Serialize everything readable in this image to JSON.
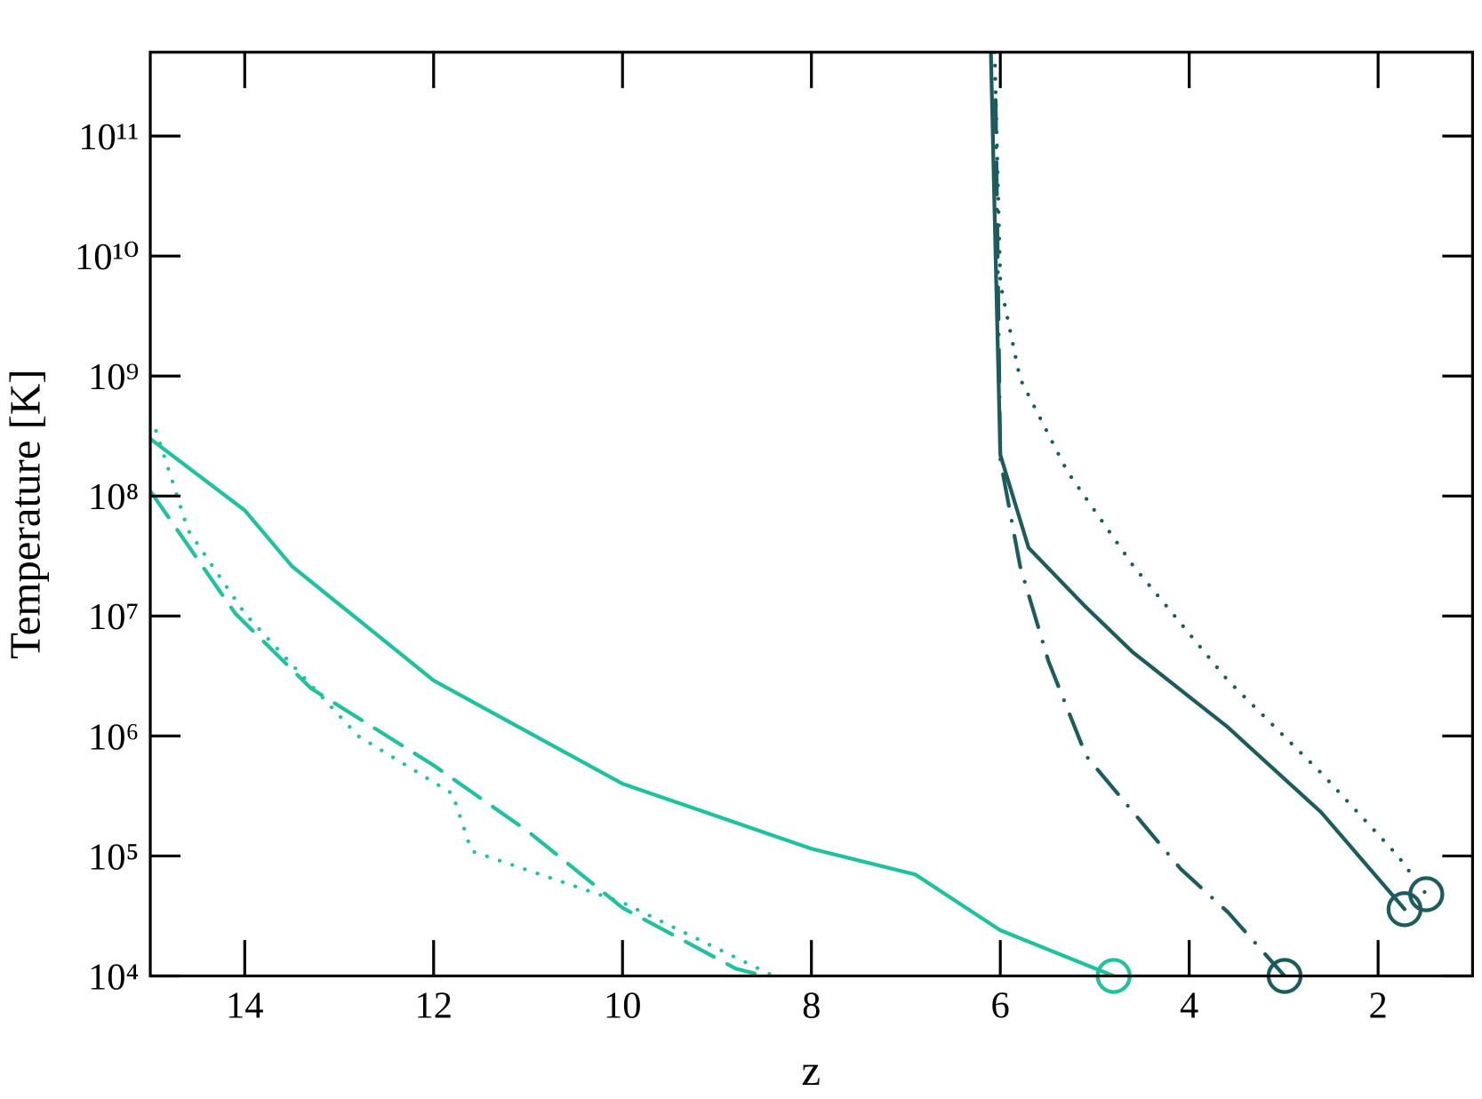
{
  "chart_data": {
    "type": "line",
    "x_label": "z",
    "y_label": "Temperature   [K]",
    "xlim": [
      15,
      1
    ],
    "ylim": [
      10000,
      500000000000
    ],
    "y_scale": "log",
    "xticks": [
      14,
      12,
      10,
      8,
      6,
      4,
      2
    ],
    "yticks": [
      {
        "value": 10000,
        "label": "10⁴"
      },
      {
        "value": 100000,
        "label": "10⁵"
      },
      {
        "value": 1000000,
        "label": "10⁶"
      },
      {
        "value": 10000000,
        "label": "10⁷"
      },
      {
        "value": 100000000,
        "label": "10⁸"
      },
      {
        "value": 1000000000,
        "label": "10⁹"
      },
      {
        "value": 10000000000,
        "label": "10¹⁰"
      },
      {
        "value": 100000000000,
        "label": "10¹¹"
      }
    ],
    "series": [
      {
        "color": "#1fc29e",
        "dash": "solid",
        "end_marker": true,
        "x": [
          15,
          14,
          13.5,
          12,
          10,
          8,
          6.9,
          6,
          4.8
        ],
        "values": [
          300000000,
          76000000,
          26000000,
          2900000,
          400000,
          115000,
          70000,
          24000,
          10000
        ]
      },
      {
        "color": "#1fc29e",
        "dash": "dashed",
        "end_marker": false,
        "x": [
          15,
          14.1,
          13.3,
          12,
          11,
          10,
          8.8,
          8.6
        ],
        "values": [
          110000000,
          10500000,
          2500000,
          570000,
          160000,
          37000,
          11500,
          10500
        ]
      },
      {
        "color": "#1fc29e",
        "dash": "dotted",
        "end_marker": false,
        "x": [
          14.94,
          14.6,
          14,
          12.8,
          11.8,
          11.6,
          10,
          8.4
        ],
        "values": [
          350000000,
          52000000,
          10500000,
          1000000,
          330000,
          110000,
          41000,
          10000
        ]
      },
      {
        "color": "#1d5c5c",
        "dash": "solid",
        "end_marker": true,
        "x": [
          6.1,
          6.05,
          6.02,
          6.0,
          5.7,
          5.1,
          4.6,
          3.6,
          2.6,
          1.72
        ],
        "values": [
          500000000000,
          10000000000,
          1000000000,
          220000000,
          37000000,
          12000000,
          5000000,
          1200000,
          230000,
          36000
        ]
      },
      {
        "color": "#1d5c5c",
        "dash": "dotted",
        "end_marker": true,
        "x": [
          6.06,
          6.0,
          5.79,
          5.29,
          4.59,
          3.59,
          2.59,
          1.79,
          1.49
        ],
        "values": [
          500000000000,
          5900000000,
          950000000,
          160000000,
          26000000,
          2900000,
          480000,
          100000,
          48000
        ]
      },
      {
        "color": "#1d5c5c",
        "dash": "dashdot",
        "end_marker": true,
        "x": [
          6.05,
          6.0,
          5.79,
          5.49,
          5.09,
          4.09,
          3.59,
          2.99
        ],
        "values": [
          200000000000,
          200000000,
          26000000,
          4200000,
          680000,
          78000,
          34000,
          10000
        ]
      }
    ]
  }
}
